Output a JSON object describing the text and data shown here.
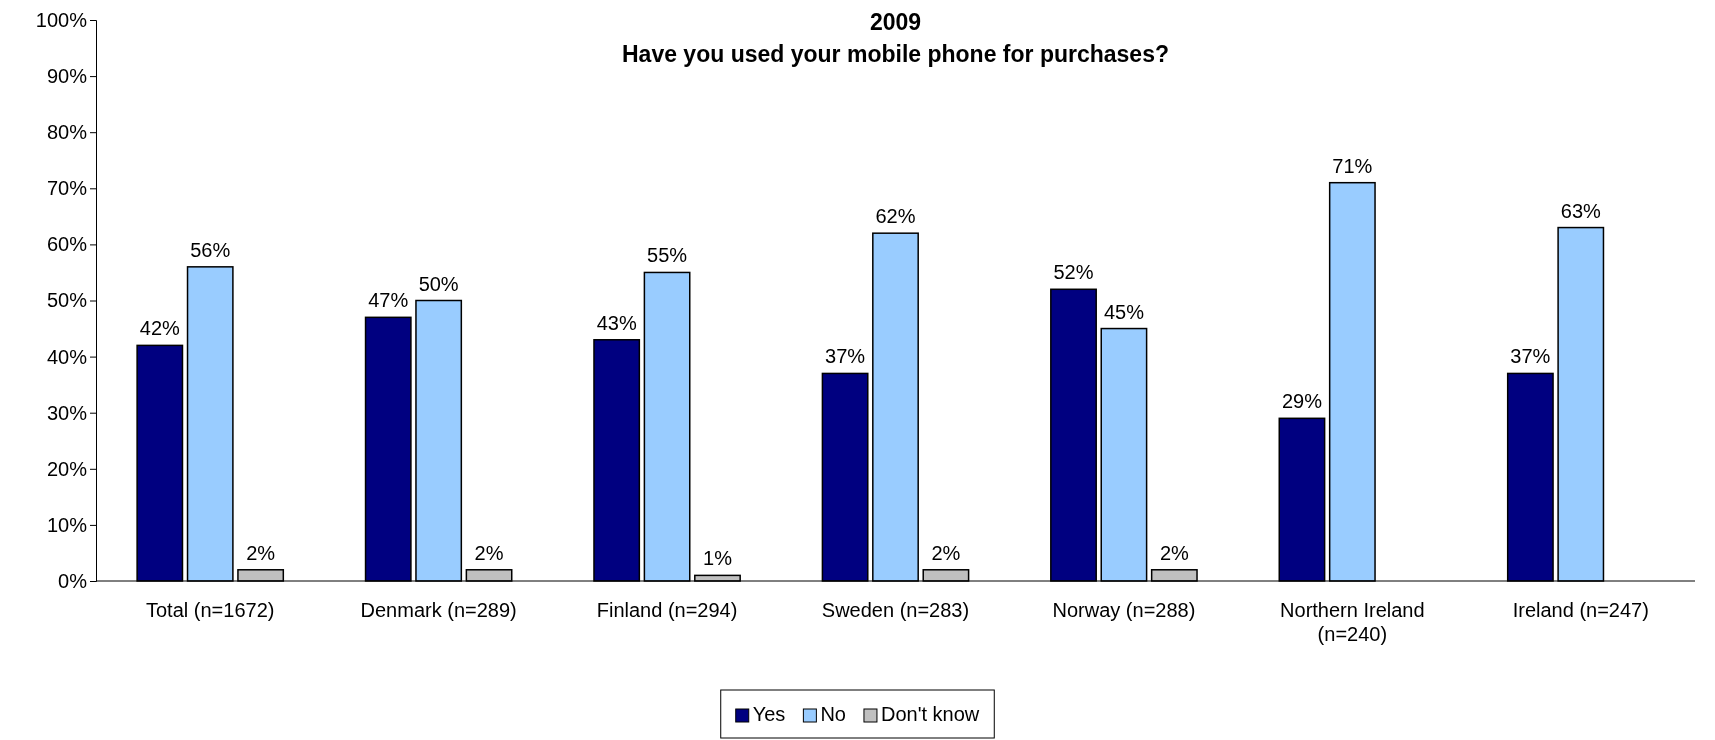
{
  "chart_data": {
    "type": "bar",
    "title": "2009",
    "subtitle": "Have you used your mobile phone for purchases?",
    "categories": [
      "Total (n=1672)",
      "Denmark (n=289)",
      "Finland (n=294)",
      "Sweden (n=283)",
      "Norway (n=288)",
      "Northern Ireland (n=240)",
      "Ireland (n=247)"
    ],
    "series": [
      {
        "name": "Yes",
        "color": "#000080",
        "values": [
          42,
          47,
          43,
          37,
          52,
          29,
          37
        ],
        "value_labels": [
          "42%",
          "47%",
          "43%",
          "37%",
          "52%",
          "29%",
          "37%"
        ]
      },
      {
        "name": "No",
        "color": "#99ccff",
        "values": [
          56,
          50,
          55,
          62,
          45,
          71,
          63
        ],
        "value_labels": [
          "56%",
          "50%",
          "55%",
          "62%",
          "45%",
          "71%",
          "63%"
        ]
      },
      {
        "name": "Don't know",
        "color": "#c0c0c0",
        "values": [
          2,
          2,
          1,
          2,
          2,
          null,
          null
        ],
        "value_labels": [
          "2%",
          "2%",
          "1%",
          "2%",
          "2%",
          null,
          null
        ]
      }
    ],
    "ylim": [
      0,
      100
    ],
    "yticks": [
      {
        "value": 0,
        "label": "0%"
      },
      {
        "value": 10,
        "label": "10%"
      },
      {
        "value": 20,
        "label": "20%"
      },
      {
        "value": 30,
        "label": "30%"
      },
      {
        "value": 40,
        "label": "40%"
      },
      {
        "value": 50,
        "label": "50%"
      },
      {
        "value": 60,
        "label": "60%"
      },
      {
        "value": 70,
        "label": "70%"
      },
      {
        "value": 80,
        "label": "80%"
      },
      {
        "value": 90,
        "label": "90%"
      },
      {
        "value": 100,
        "label": "100%"
      }
    ],
    "grid": false,
    "legend": "bottom"
  }
}
